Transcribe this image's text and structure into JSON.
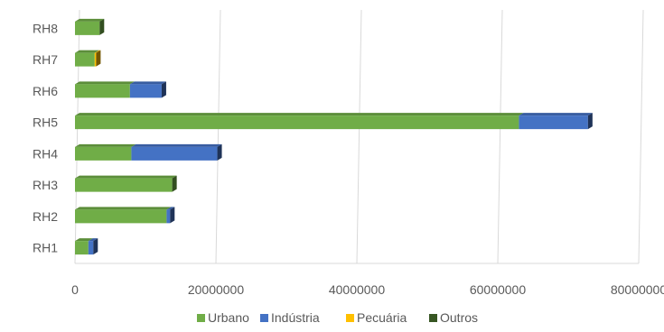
{
  "chart_data": {
    "type": "bar",
    "orientation": "horizontal",
    "stacked": true,
    "three_d": true,
    "categories": [
      "RH1",
      "RH2",
      "RH3",
      "RH4",
      "RH5",
      "RH6",
      "RH7",
      "RH8"
    ],
    "series": [
      {
        "name": "Urbano",
        "color": "#70AD47",
        "values": [
          1900000,
          13000000,
          13800000,
          8000000,
          63000000,
          7800000,
          2800000,
          3500000
        ]
      },
      {
        "name": "Indústria",
        "color": "#4472C4",
        "values": [
          700000,
          500000,
          0,
          12200000,
          9800000,
          4500000,
          0,
          0
        ]
      },
      {
        "name": "Pecuária",
        "color": "#FFC000",
        "values": [
          0,
          0,
          0,
          0,
          0,
          0,
          200000,
          0
        ]
      },
      {
        "name": "Outros",
        "color": "#375623",
        "values": [
          0,
          0,
          0,
          0,
          0,
          0,
          0,
          0
        ]
      }
    ],
    "xlim": [
      0,
      80000000
    ],
    "xticks": [
      "0",
      "20000000",
      "40000000",
      "60000000",
      "80000000"
    ],
    "grid": true,
    "legend_position": "bottom",
    "title": "",
    "xlabel": "",
    "ylabel": ""
  }
}
